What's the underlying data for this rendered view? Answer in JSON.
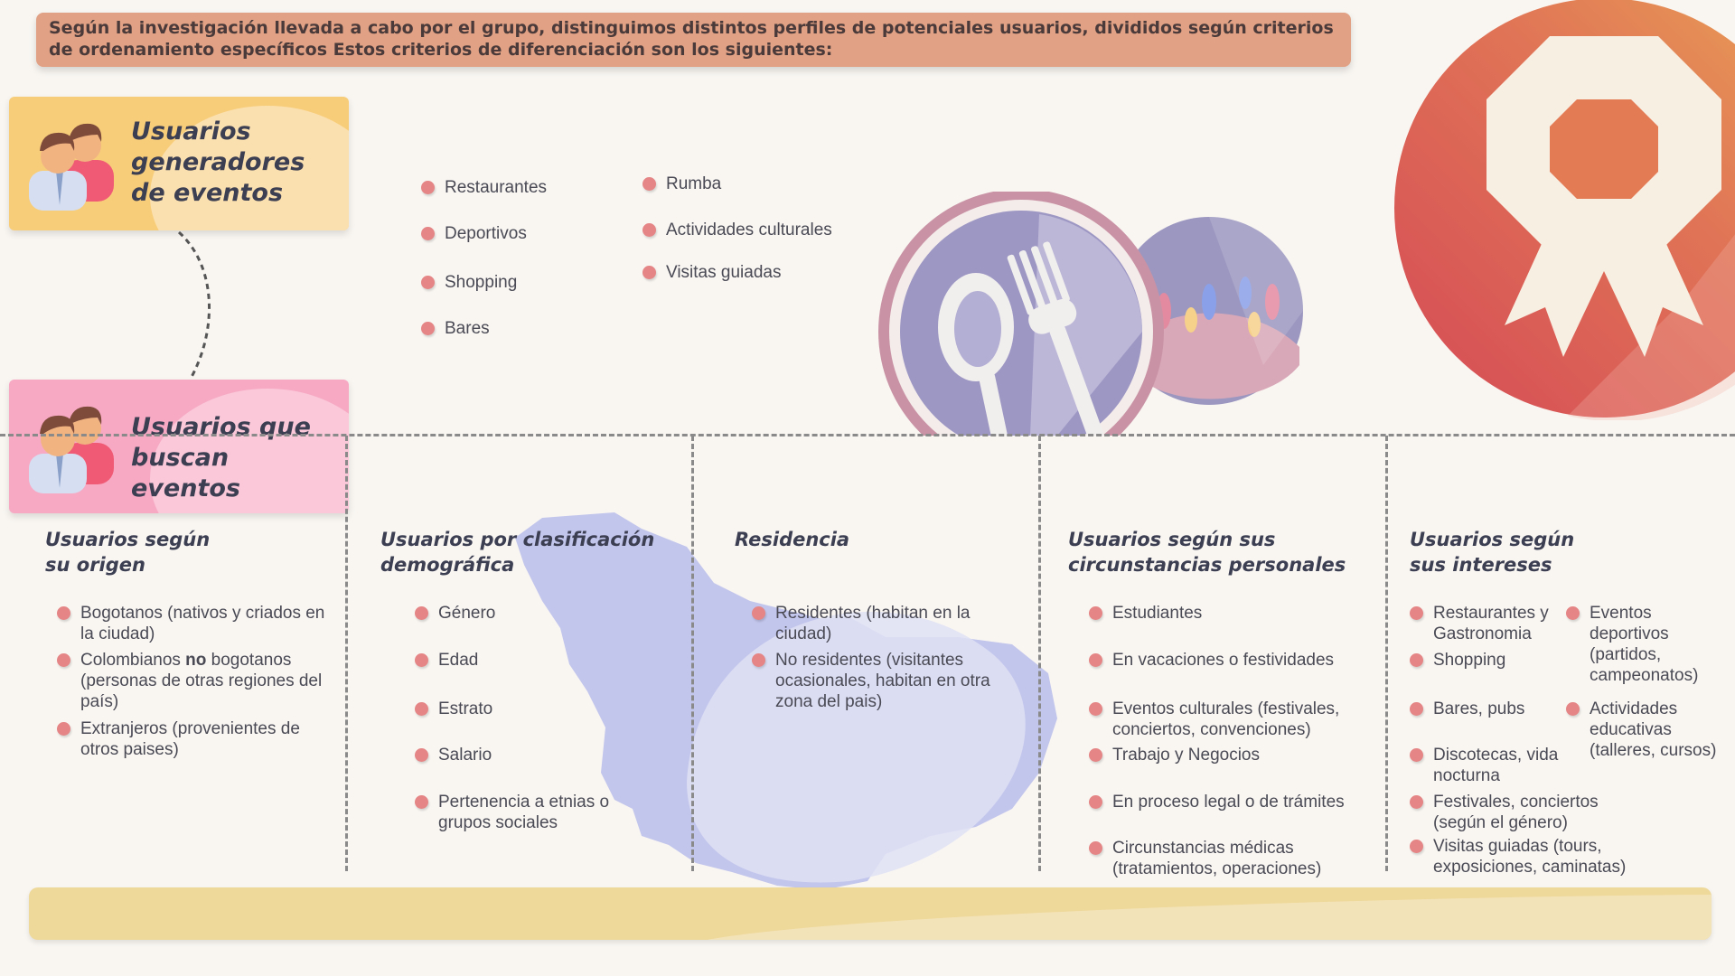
{
  "intro": "Según la investigación llevada a cabo por el grupo, distinguimos distintos perfiles de potenciales usuarios, divididos según criterios de ordenamiento específicos Estos criterios de diferenciación son los siguientes:",
  "cards": {
    "generators": "Usuarios generadores de eventos",
    "seekers": "Usuarios que buscan eventos"
  },
  "event_types": {
    "col1": [
      "Restaurantes",
      "Deportivos",
      "Shopping",
      "Bares"
    ],
    "col2": [
      "Rumba",
      "Actividades culturales",
      "Visitas guiadas"
    ]
  },
  "columns": {
    "origin": {
      "title": "Usuarios según su origen",
      "items": [
        "Bogotanos (nativos y criados en la ciudad)",
        "Colombianos no bogotanos (personas de otras regiones del país)",
        "Extranjeros (provenientes de otros paises)"
      ]
    },
    "demographic": {
      "title": "Usuarios por clasificación demográfica",
      "items": [
        "Género",
        "Edad",
        "Estrato",
        "Salario",
        "Pertenencia a etnias o grupos sociales"
      ]
    },
    "residence": {
      "title": "Residencia",
      "items": [
        "Residentes (habitan en la ciudad)",
        "No residentes (visitantes ocasionales, habitan en otra zona del pais)"
      ]
    },
    "circumstances": {
      "title": "Usuarios según sus circunstancias personales",
      "items": [
        "Estudiantes",
        "En vacaciones o festividades",
        "Eventos culturales (festivales, conciertos, convenciones)",
        "Trabajo y Negocios",
        "En proceso legal o de trámites",
        "Circunstancias médicas (tratamientos, operaciones)"
      ]
    },
    "interests": {
      "title": "Usuarios según sus intereses",
      "items_left": [
        "Restaurantes y Gastronomia",
        "Shopping",
        "Bares, pubs",
        "Discotecas, vida nocturna",
        "Festivales, conciertos (según el género)",
        "Visitas guiadas (tours, exposiciones, caminatas)"
      ],
      "items_right": [
        "Eventos deportivos (partidos, campeonatos)",
        "Actividades educativas (talleres, cursos)"
      ]
    }
  },
  "icons": [
    "users-icon",
    "fork-spoon-icon",
    "crowd-icon",
    "award-ribbon-icon",
    "map-silhouette"
  ],
  "colors": {
    "bullet": "#e58585",
    "card_yellow": "#f8cd7a",
    "card_pink": "#f7a9c4",
    "intro_bg": "#e1a184",
    "footer": "#eed89a"
  }
}
